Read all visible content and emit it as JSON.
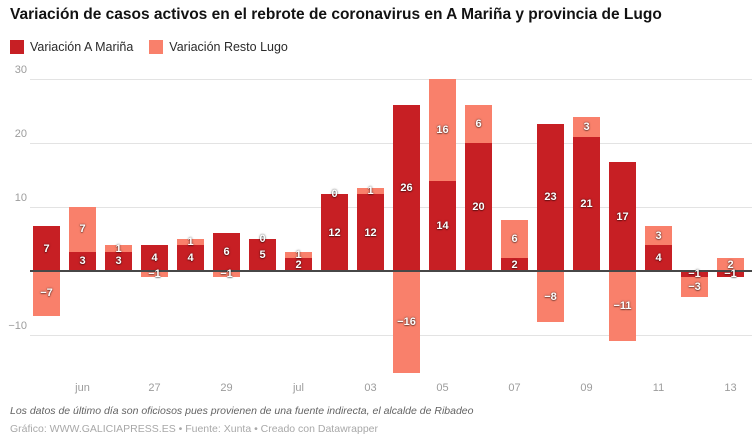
{
  "title": "Variación de casos activos en el rebrote de coronavirus en A Mariña y provincia de Lugo",
  "legend": {
    "items": [
      {
        "label": "Variación A Mariña",
        "color": "#c71f24"
      },
      {
        "label": "Variación Resto Lugo",
        "color": "#f9806b"
      }
    ]
  },
  "footer": {
    "footnote": "Los datos de último día son oficiosos pues provienen de una fuente indirecta, el alcalde de Ribadeo",
    "byline": "Gráfico: WWW.GALICIAPRESS.ES • Fuente: Xunta • Creado con Datawrapper"
  },
  "chart_data": {
    "type": "bar",
    "stacked": true,
    "title": "Variación de casos activos en el rebrote de coronavirus en A Mariña y provincia de Lugo",
    "categories": [
      "",
      "jun",
      "",
      "27",
      "",
      "29",
      "",
      "jul",
      "",
      "03",
      "",
      "05",
      "",
      "07",
      "",
      "09",
      "",
      "11",
      "",
      "13"
    ],
    "series": [
      {
        "name": "Variación A Mariña",
        "color": "#c71f24",
        "values": [
          7,
          3,
          3,
          4,
          4,
          6,
          5,
          2,
          12,
          12,
          26,
          14,
          20,
          2,
          23,
          21,
          17,
          4,
          -1,
          -1
        ]
      },
      {
        "name": "Variación Resto Lugo",
        "color": "#f9806b",
        "values": [
          -7,
          7,
          1,
          -1,
          1,
          -1,
          0,
          1,
          0,
          1,
          -16,
          16,
          6,
          6,
          -8,
          3,
          -11,
          3,
          -3,
          2
        ]
      }
    ],
    "yticks": [
      30,
      20,
      10,
      -10
    ],
    "ylim": [
      -17.5,
      31
    ],
    "grid": true,
    "legend_position": "top",
    "value_labels": true,
    "xlabel": "",
    "ylabel": ""
  },
  "colors": {
    "grid": "#e3e3e3",
    "baseline": "#474747",
    "tick_text": "#9c9c9c"
  }
}
